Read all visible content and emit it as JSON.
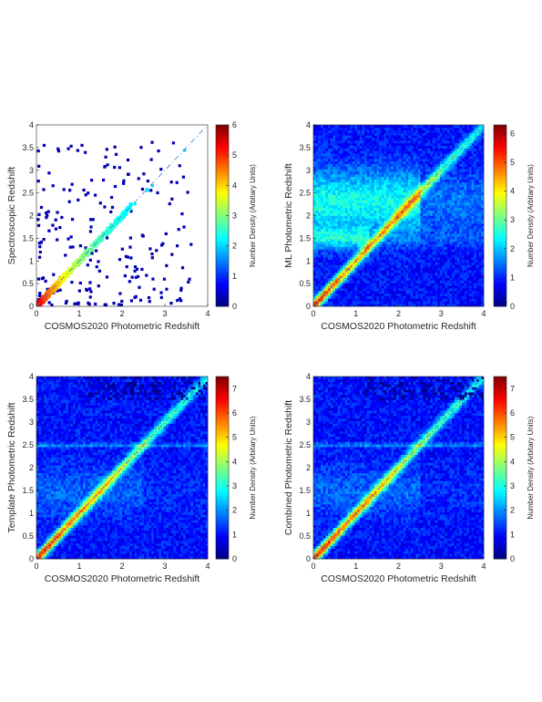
{
  "chart_data": [
    {
      "type": "heatmap",
      "panel": "spectroscopic",
      "xlabel": "COSMOS2020 Photometric Redshift",
      "ylabel": "Spectroscopic Redshift",
      "xlim": [
        0,
        4
      ],
      "ylim": [
        0,
        4
      ],
      "xticks": [
        "0",
        "1",
        "2",
        "3",
        "4"
      ],
      "yticks": [
        "0",
        "0.5",
        "1",
        "1.5",
        "2",
        "2.5",
        "3",
        "3.5",
        "4"
      ],
      "background": "white",
      "sparse": true,
      "diagonal": "dash-dot one-to-one line",
      "colorbar": {
        "label": "Number Density (Arbitary Units)",
        "range": [
          0,
          6
        ],
        "ticks": [
          "0",
          "1",
          "2",
          "3",
          "4",
          "5",
          "6"
        ],
        "colormap": "jet"
      }
    },
    {
      "type": "heatmap",
      "panel": "ml",
      "xlabel": "COSMOS2020 Photometric Redshift",
      "ylabel": "ML Photometric Redshift",
      "xlim": [
        0,
        4
      ],
      "ylim": [
        0,
        4
      ],
      "xticks": [
        "0",
        "1",
        "2",
        "3",
        "4"
      ],
      "yticks": [
        "0",
        "0.5",
        "1",
        "1.5",
        "2",
        "2.5",
        "3",
        "3.5",
        "4"
      ],
      "background": "dense",
      "diagonal": "dash-dot one-to-one line",
      "colorbar": {
        "label": "Number Density (Arbitary Units)",
        "range": [
          0,
          6.3
        ],
        "ticks": [
          "0",
          "1",
          "2",
          "3",
          "4",
          "5",
          "6"
        ],
        "colormap": "jet"
      }
    },
    {
      "type": "heatmap",
      "panel": "template",
      "xlabel": "COSMOS2020 Photometric Redshift",
      "ylabel": "Template Photometric Redshift",
      "xlim": [
        0,
        4
      ],
      "ylim": [
        0,
        4
      ],
      "xticks": [
        "0",
        "1",
        "2",
        "3",
        "4"
      ],
      "yticks": [
        "0",
        "0.5",
        "1",
        "1.5",
        "2",
        "2.5",
        "3",
        "3.5",
        "4"
      ],
      "background": "dense",
      "diagonal": "dash-dot one-to-one line",
      "colorbar": {
        "label": "Number Density (Arbitary Units)",
        "range": [
          0,
          7.5
        ],
        "ticks": [
          "0",
          "1",
          "2",
          "3",
          "4",
          "5",
          "6",
          "7"
        ],
        "colormap": "jet"
      }
    },
    {
      "type": "heatmap",
      "panel": "combined",
      "xlabel": "COSMOS2020 Photometric Redshift",
      "ylabel": "Combined Photometric Redshift",
      "xlim": [
        0,
        4
      ],
      "ylim": [
        0,
        4
      ],
      "xticks": [
        "0",
        "1",
        "2",
        "3",
        "4"
      ],
      "yticks": [
        "0",
        "0.5",
        "1",
        "1.5",
        "2",
        "2.5",
        "3",
        "3.5",
        "4"
      ],
      "background": "dense",
      "diagonal": "dash-dot one-to-one line",
      "colorbar": {
        "label": "Number Density (Arbitary Units)",
        "range": [
          0,
          7.5
        ],
        "ticks": [
          "0",
          "1",
          "2",
          "3",
          "4",
          "5",
          "6",
          "7"
        ],
        "colormap": "jet"
      }
    }
  ]
}
